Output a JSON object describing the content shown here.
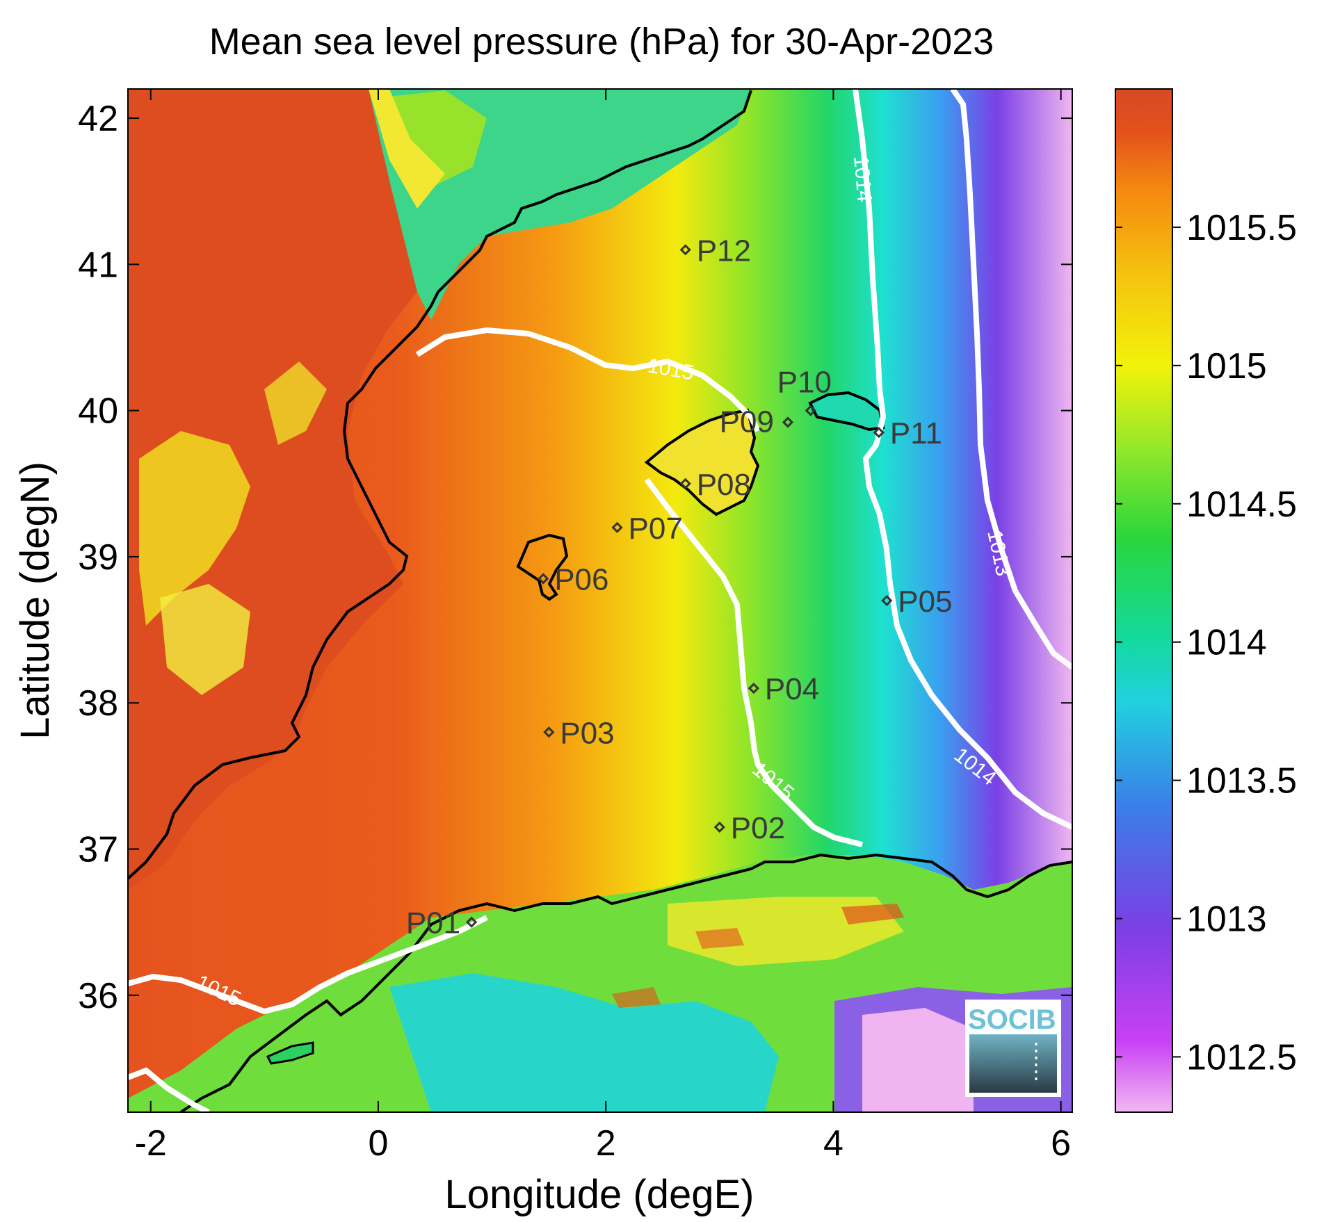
{
  "title": "Mean sea level pressure (hPa) for 30-Apr-2023",
  "x_axis": {
    "label": "Longitude (degE)",
    "range": [
      -2.2,
      6.1
    ],
    "ticks": [
      -2,
      0,
      2,
      4,
      6
    ]
  },
  "y_axis": {
    "label": "Latitude (degN)",
    "range": [
      35.2,
      42.2
    ],
    "ticks": [
      36,
      37,
      38,
      39,
      40,
      41,
      42
    ]
  },
  "colorbar": {
    "range": [
      1012.3,
      1016.0
    ],
    "ticks": [
      1012.5,
      1013,
      1013.5,
      1014,
      1014.5,
      1015,
      1015.5
    ],
    "tick_labels": [
      "1012.5",
      "1013",
      "1013.5",
      "1014",
      "1014.5",
      "1015",
      "1015.5"
    ],
    "colors": [
      "#f2b7f2",
      "#c940f5",
      "#7b3fe4",
      "#3a7fe8",
      "#22d0e0",
      "#14d9a0",
      "#29d63c",
      "#95e82a",
      "#f2f20a",
      "#f5c20e",
      "#f58a10",
      "#e3501c",
      "#d94a24"
    ]
  },
  "contours": [
    {
      "level": "1013"
    },
    {
      "level": "1014"
    },
    {
      "level": "1015"
    }
  ],
  "stations": [
    {
      "id": "P01",
      "lon": 0.82,
      "lat": 36.5
    },
    {
      "id": "P02",
      "lon": 3.0,
      "lat": 37.15
    },
    {
      "id": "P03",
      "lon": 1.5,
      "lat": 37.8
    },
    {
      "id": "P04",
      "lon": 3.3,
      "lat": 38.1
    },
    {
      "id": "P05",
      "lon": 4.47,
      "lat": 38.7
    },
    {
      "id": "P06",
      "lon": 1.45,
      "lat": 38.85
    },
    {
      "id": "P07",
      "lon": 2.1,
      "lat": 39.2
    },
    {
      "id": "P08",
      "lon": 2.7,
      "lat": 39.5
    },
    {
      "id": "P09",
      "lon": 3.6,
      "lat": 39.92
    },
    {
      "id": "P10",
      "lon": 3.8,
      "lat": 40.0
    },
    {
      "id": "P11",
      "lon": 4.4,
      "lat": 39.85
    },
    {
      "id": "P12",
      "lon": 2.7,
      "lat": 41.1
    }
  ],
  "logo": {
    "text": "SOCIB",
    "icon": "socib-logo"
  }
}
